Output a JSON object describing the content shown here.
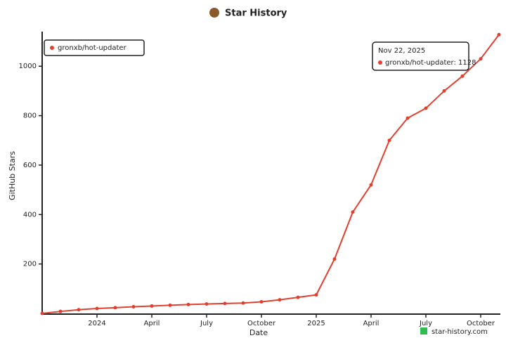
{
  "chart_data": {
    "type": "line",
    "title": "Star History",
    "x_label": "Date",
    "y_label": "GitHub Stars",
    "x": [
      "2023-10",
      "2023-11",
      "2023-12",
      "2024-01",
      "2024-02",
      "2024-03",
      "2024-04",
      "2024-05",
      "2024-06",
      "2024-07",
      "2024-08",
      "2024-09",
      "2024-10",
      "2024-11",
      "2024-12",
      "2025-01",
      "2025-02",
      "2025-03",
      "2025-04",
      "2025-05",
      "2025-06",
      "2025-07",
      "2025-08",
      "2025-09",
      "2025-10",
      "2025-11"
    ],
    "series": [
      {
        "name": "gronxb/hot-updater",
        "color": "#e2402f",
        "values": [
          0,
          8,
          15,
          20,
          23,
          27,
          30,
          33,
          36,
          38,
          40,
          42,
          47,
          55,
          65,
          75,
          220,
          410,
          520,
          700,
          790,
          830,
          900,
          960,
          1030,
          1128
        ]
      }
    ],
    "xlim": [
      "2023-10",
      "2025-11"
    ],
    "xticks": [
      {
        "value": "2024-01",
        "label": "2024"
      },
      {
        "value": "2024-04",
        "label": "April"
      },
      {
        "value": "2024-07",
        "label": "July"
      },
      {
        "value": "2024-10",
        "label": "October"
      },
      {
        "value": "2025-01",
        "label": "2025"
      },
      {
        "value": "2025-04",
        "label": "April"
      },
      {
        "value": "2025-07",
        "label": "July"
      },
      {
        "value": "2025-10",
        "label": "October"
      }
    ],
    "ylim": [
      0,
      1140
    ],
    "yticks": [
      200,
      400,
      600,
      800,
      1000
    ],
    "legend": "top-left",
    "tooltip": {
      "date": "Nov 22, 2025",
      "label": "gronxb/hot-updater: 1128"
    },
    "watermark": "star-history.com"
  }
}
